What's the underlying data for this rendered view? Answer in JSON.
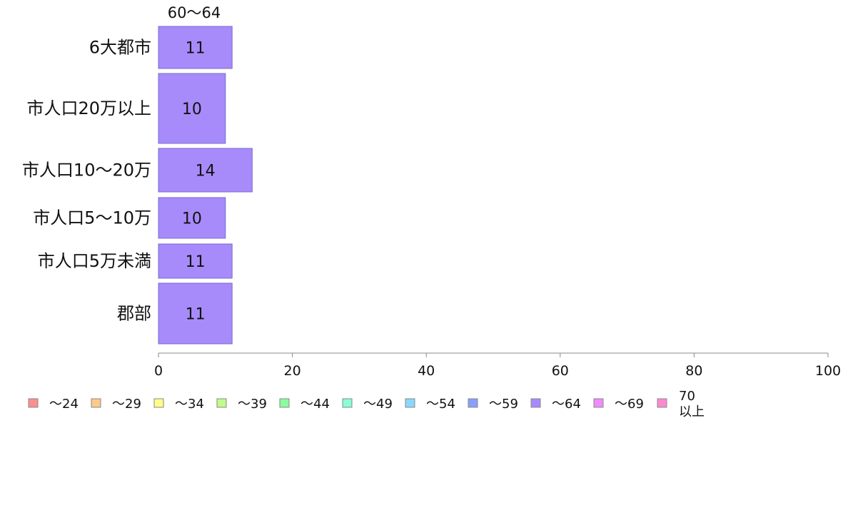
{
  "chart_data": {
    "type": "bar",
    "orientation": "horizontal",
    "stacked": true,
    "categories": [
      "6大都市",
      "市人口20万以上",
      "市人口10〜20万",
      "市人口5〜10万",
      "市人口5万未満",
      "郡部"
    ],
    "series_header": "60〜64",
    "series": [
      {
        "name": "〜64",
        "values": [
          11,
          10,
          14,
          10,
          11,
          11
        ],
        "color": "#a78bfa"
      }
    ],
    "xlim": [
      0,
      100
    ],
    "x_ticks": [
      0,
      20,
      40,
      60,
      80,
      100
    ],
    "grid": false,
    "legend_position": "bottom",
    "legend": [
      {
        "label": "〜24",
        "color": "#fb8f8f"
      },
      {
        "label": "〜29",
        "color": "#fdca8a"
      },
      {
        "label": "〜34",
        "color": "#fdfd8a"
      },
      {
        "label": "〜39",
        "color": "#c0fd8a"
      },
      {
        "label": "〜44",
        "color": "#8afda0"
      },
      {
        "label": "〜49",
        "color": "#8afdd8"
      },
      {
        "label": "〜54",
        "color": "#8ad8fd"
      },
      {
        "label": "〜59",
        "color": "#8a9efd"
      },
      {
        "label": "〜64",
        "color": "#a78bfa"
      },
      {
        "label": "〜69",
        "color": "#f08afd"
      },
      {
        "label": "70 以上",
        "color": "#fd8ad0"
      }
    ]
  }
}
